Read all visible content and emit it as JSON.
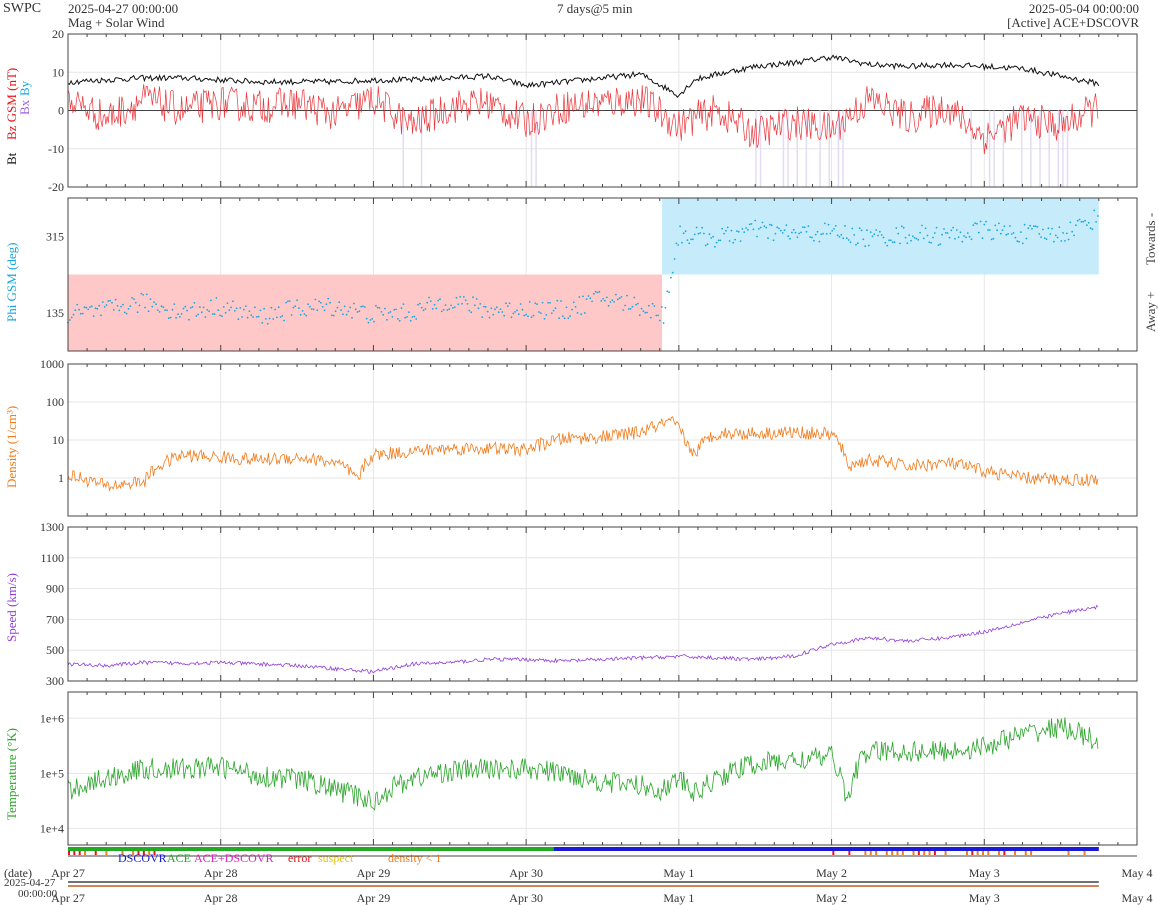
{
  "header": {
    "org": "SWPC",
    "start_time": "2025-04-27 00:00:00",
    "product": "Mag + Solar Wind",
    "span": "7 days@5 min",
    "end_time": "2025-05-04 00:00:00",
    "source": "[Active] ACE+DSCOVR"
  },
  "colors": {
    "bt": "#111111",
    "bz": "#e8141a",
    "bx": "#9b5ee0",
    "by": "#1aa7e0",
    "phi": "#1aa7e0",
    "density": "#f07c1e",
    "speed": "#9040d8",
    "temperature": "#2ca52c",
    "away_band": "#ffc8c8",
    "towards_band": "#c6ecfb",
    "southward_band": "#e3dcf3"
  },
  "legend": {
    "dscovr": "DSCOVR",
    "ace": "ACE",
    "ace_dscovr": "ACE+DSCOVR",
    "error": "error",
    "suspect": "suspect",
    "density_low": "density < 1"
  },
  "bottom": {
    "date_label": "(date)",
    "date_value": "2025-04-27",
    "time_value": "00:00:00"
  },
  "chart_data": [
    {
      "type": "line",
      "panel": "mag",
      "ylabel_parts": [
        "Bt",
        "Bz GSM (nT)",
        "Bx",
        "By"
      ],
      "ylim": [
        -20,
        20
      ],
      "yticks": [
        -20,
        -10,
        0,
        10,
        20
      ],
      "x_range_days": [
        0,
        7
      ],
      "x_tick_labels": [
        "Apr 27",
        "Apr 28",
        "Apr 29",
        "Apr 30",
        "May 1",
        "May 2",
        "May 3",
        "May 4"
      ],
      "series": [
        {
          "name": "Bt",
          "x": [
            0,
            0.25,
            0.5,
            0.75,
            1,
            1.25,
            1.5,
            1.75,
            2,
            2.25,
            2.5,
            2.75,
            3,
            3.25,
            3.5,
            3.75,
            4,
            4.1,
            4.25,
            4.5,
            4.75,
            5,
            5.25,
            5.5,
            5.75,
            6,
            6.25,
            6.5,
            6.75
          ],
          "values": [
            7.5,
            8,
            8.5,
            8.5,
            8,
            7.5,
            7.5,
            7.5,
            8,
            8,
            8.5,
            9,
            6.5,
            7.5,
            8.5,
            9.5,
            4,
            8,
            9.5,
            11.5,
            12.5,
            14,
            12,
            11.5,
            12,
            11.5,
            11,
            9,
            7
          ]
        },
        {
          "name": "Bz GSM",
          "x": [
            0,
            0.25,
            0.5,
            0.75,
            1,
            1.25,
            1.5,
            1.75,
            2,
            2.25,
            2.5,
            2.75,
            3,
            3.25,
            3.5,
            3.75,
            4,
            4.1,
            4.25,
            4.5,
            4.75,
            5,
            5.25,
            5.5,
            5.75,
            6,
            6.25,
            6.5,
            6.75
          ],
          "values": [
            3,
            -2,
            3,
            0,
            2,
            1,
            2,
            -1,
            3,
            -4,
            1,
            2,
            -3,
            1,
            2,
            3,
            -4,
            -2,
            0,
            -6,
            -3,
            -5,
            3,
            -2,
            1,
            -7,
            -2,
            -4,
            1
          ]
        }
      ]
    },
    {
      "type": "scatter",
      "panel": "phi",
      "ylabel": "Phi GSM (deg)",
      "yticks": [
        135,
        315
      ],
      "ylim": [
        45,
        405
      ],
      "right_labels": [
        "Towards -",
        "Away +"
      ],
      "series": [
        {
          "name": "Phi",
          "x": [
            0,
            0.25,
            0.5,
            0.75,
            1,
            1.25,
            1.5,
            1.75,
            2,
            2.25,
            2.5,
            2.75,
            3,
            3.25,
            3.5,
            3.75,
            3.9,
            4,
            4.25,
            4.5,
            4.75,
            5,
            5.25,
            5.5,
            5.75,
            6,
            6.25,
            6.5,
            6.75
          ],
          "values": [
            130,
            140,
            160,
            135,
            150,
            125,
            145,
            150,
            130,
            135,
            165,
            140,
            145,
            140,
            170,
            150,
            130,
            320,
            310,
            330,
            320,
            325,
            310,
            320,
            315,
            330,
            320,
            320,
            360
          ]
        }
      ],
      "sectors": [
        {
          "label": "Away +",
          "from_day": 0,
          "to_day": 3.89
        },
        {
          "label": "Towards -",
          "from_day": 3.89,
          "to_day": 6.75
        }
      ]
    },
    {
      "type": "line",
      "panel": "density",
      "ylabel": "Density (1/cm³)",
      "scale": "log",
      "ylim": [
        0.1,
        1000
      ],
      "ytick_labels": [
        "1",
        "10",
        "100",
        "1000"
      ],
      "series": [
        {
          "name": "Density",
          "x": [
            0,
            0.25,
            0.5,
            0.75,
            1,
            1.25,
            1.5,
            1.75,
            1.9,
            2,
            2.25,
            2.5,
            2.75,
            3,
            3.25,
            3.5,
            3.75,
            3.95,
            4.05,
            4.1,
            4.25,
            4.5,
            4.75,
            5,
            5.1,
            5.25,
            5.5,
            5.75,
            6,
            6.25,
            6.5,
            6.75
          ],
          "values": [
            1.2,
            0.6,
            0.8,
            4,
            3.5,
            3,
            3.5,
            2.5,
            0.8,
            4,
            5,
            6,
            6,
            5.5,
            11,
            12,
            16,
            30,
            8,
            4,
            15,
            15,
            16,
            14,
            2,
            3,
            2,
            2.5,
            1.5,
            1,
            0.9,
            0.9
          ]
        }
      ]
    },
    {
      "type": "line",
      "panel": "speed",
      "ylabel": "Speed (km/s)",
      "ylim": [
        300,
        1300
      ],
      "yticks": [
        300,
        500,
        700,
        900,
        1100,
        1300
      ],
      "series": [
        {
          "name": "Speed",
          "x": [
            0,
            0.25,
            0.5,
            0.75,
            1,
            1.25,
            1.5,
            1.75,
            2,
            2.25,
            2.5,
            2.75,
            3,
            3.25,
            3.5,
            3.75,
            4,
            4.25,
            4.5,
            4.75,
            5,
            5.25,
            5.5,
            5.75,
            6,
            6.25,
            6.5,
            6.75
          ],
          "values": [
            410,
            400,
            420,
            415,
            420,
            410,
            400,
            380,
            360,
            410,
            420,
            440,
            440,
            430,
            440,
            450,
            460,
            450,
            440,
            460,
            540,
            580,
            560,
            580,
            620,
            680,
            740,
            780
          ]
        }
      ]
    },
    {
      "type": "line",
      "panel": "temperature",
      "ylabel": "Temperature (°K)",
      "scale": "log",
      "ylim": [
        5000,
        3000000
      ],
      "ytick_labels": [
        "1e+4",
        "1e+5",
        "1e+6"
      ],
      "series": [
        {
          "name": "Temperature",
          "x": [
            0,
            0.25,
            0.5,
            0.75,
            1,
            1.25,
            1.5,
            1.75,
            2,
            2.25,
            2.5,
            2.75,
            3,
            3.25,
            3.5,
            3.75,
            3.9,
            4,
            4.1,
            4.25,
            4.5,
            4.75,
            5,
            5.1,
            5.25,
            5.5,
            5.75,
            6,
            6.25,
            6.5,
            6.75
          ],
          "values": [
            50000,
            80000,
            120000,
            120000,
            130000,
            90000,
            80000,
            50000,
            30000,
            80000,
            110000,
            120000,
            120000,
            100000,
            70000,
            60000,
            50000,
            80000,
            40000,
            80000,
            150000,
            170000,
            200000,
            20000,
            250000,
            250000,
            250000,
            300000,
            500000,
            700000,
            350000
          ]
        }
      ]
    }
  ]
}
